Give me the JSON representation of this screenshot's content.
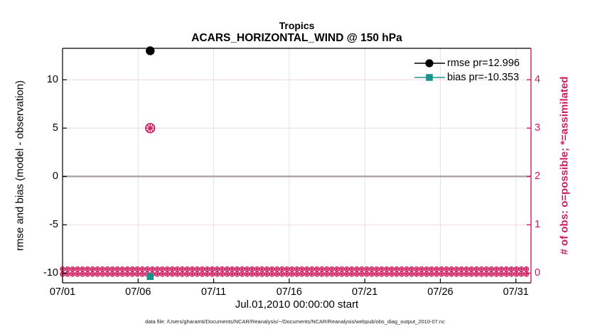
{
  "figure": {
    "title": "Tropics",
    "subtitle": "ACARS_HORIZONTAL_WIND @ 150 hPa",
    "caption": "data file: /Users/gharamti/Documents/NCAR/Reanalysis/~/Documents/NCAR/Reanalysis/webpub/obs_diag_output_2010-07.nc"
  },
  "chart_data": {
    "type": "line",
    "title": "Tropics",
    "subtitle": "ACARS_HORIZONTAL_WIND @ 150 hPa",
    "xlabel": "Jul.01,2010 00:00:00 start",
    "ylabel_left": "rmse and bias (model - observation)",
    "ylabel_right": "# of obs: o=possible; *=assimilated",
    "x_axis": {
      "xlim_days": [
        0,
        31
      ],
      "tick_days": [
        0,
        5,
        10,
        15,
        20,
        25,
        30
      ],
      "tick_labels": [
        "07/01",
        "07/06",
        "07/11",
        "07/16",
        "07/21",
        "07/26",
        "07/31"
      ]
    },
    "y_axis_left": {
      "ticks": [
        -10,
        -5,
        0,
        5,
        10
      ],
      "ylim": [
        -11,
        13.25
      ]
    },
    "y_axis_right": {
      "ticks": [
        0,
        1,
        2,
        3,
        4
      ],
      "ylim": [
        -0.2,
        4.65
      ]
    },
    "grid": true,
    "legend_position": "top-right-inside",
    "zero_line_value": 0,
    "series": [
      {
        "name": "rmse",
        "legend": "rmse pr=12.996",
        "marker": "filled-circle",
        "color": "#000000",
        "axis": "left",
        "points": [
          {
            "day": 5.8,
            "value": 12.996
          }
        ]
      },
      {
        "name": "bias",
        "legend": "bias pr=-10.353",
        "marker": "filled-square",
        "color": "#18948C",
        "axis": "left",
        "points": [
          {
            "day": 5.8,
            "value": -10.353
          }
        ]
      },
      {
        "name": "possible-obs",
        "marker": "circle-outline",
        "color": "#D01A5E",
        "axis": "right",
        "points": [
          {
            "day": 5.8,
            "count": 3
          }
        ]
      },
      {
        "name": "assimilated-obs",
        "marker": "asterisk",
        "color": "#D01A5E",
        "axis": "right",
        "points": [
          {
            "day": 5.8,
            "count": 3
          }
        ]
      }
    ],
    "zero_count_band": {
      "from_day": 0,
      "to_day": 31,
      "step_day": 0.33,
      "count": 0,
      "note": "o=possible and *=assimilated markers at count 0 for all other times"
    }
  },
  "colors": {
    "right_axis_pink": "#D01A5E",
    "grid_pink": "#F5D8E3",
    "grid_gray": "#E2E2E2",
    "zero_line_gray": "#B1A6AD",
    "bias_teal": "#18948C",
    "rmse_black": "#000000"
  }
}
